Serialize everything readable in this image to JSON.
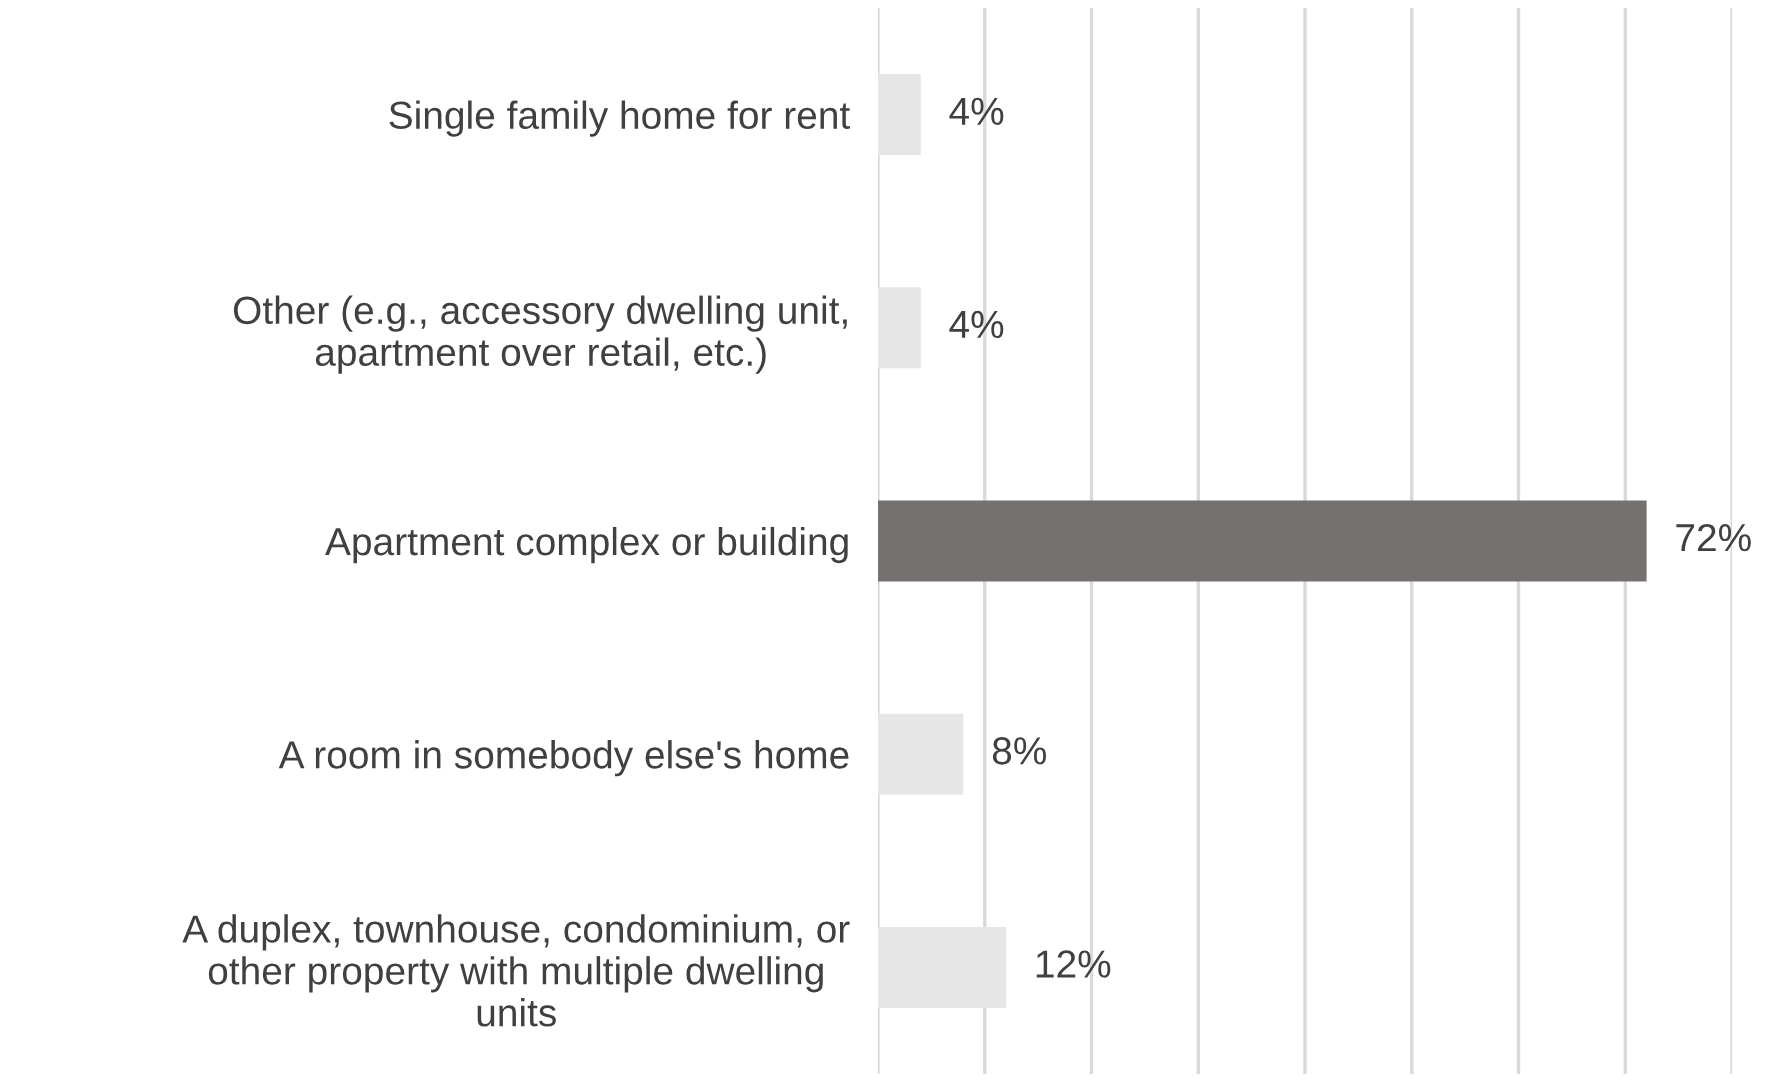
{
  "chart_data": {
    "type": "bar",
    "orientation": "horizontal",
    "categories": [
      "Single family home for rent",
      "Other (e.g., accessory dwelling unit,\napartment over retail, etc.)",
      "Apartment complex or building",
      "A room in somebody else's home",
      "A duplex, townhouse, condominium, or\nother property with multiple dwelling\nunits"
    ],
    "values": [
      4,
      4,
      72,
      8,
      12
    ],
    "colors": [
      "#e6e6e6",
      "#e6e6e6",
      "#767171",
      "#e6e6e6",
      "#e6e6e6"
    ],
    "value_labels": [
      "4%",
      "4%",
      "72%",
      "8%",
      "12%"
    ],
    "xlim": [
      0,
      80
    ],
    "xticks": [
      {
        "value": 0,
        "label": null
      },
      {
        "value": 10,
        "label": null
      },
      {
        "value": 20,
        "label": null
      },
      {
        "value": 30,
        "label": null
      },
      {
        "value": 40,
        "label": null
      },
      {
        "value": 50,
        "label": null
      },
      {
        "value": 60,
        "label": null
      },
      {
        "value": 70,
        "label": null
      },
      {
        "value": 80,
        "label": null
      }
    ],
    "grid": "x"
  }
}
